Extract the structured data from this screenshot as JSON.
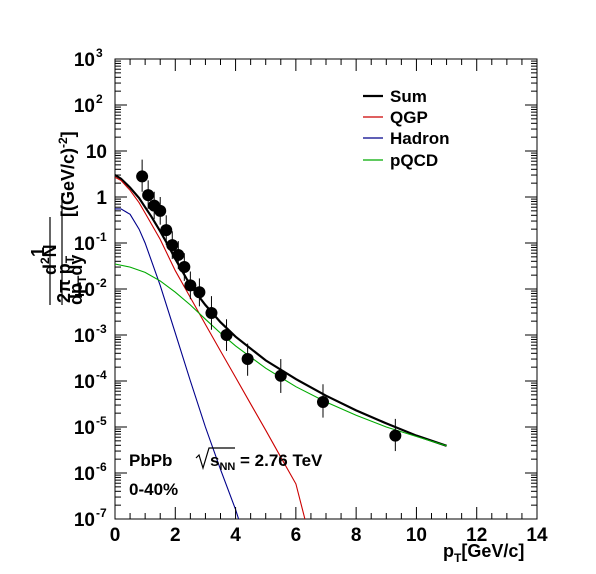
{
  "chart_data": {
    "type": "line",
    "x_axis": {
      "label_main": "p",
      "label_sub": "T",
      "label_unit": "[GeV/c]",
      "range": [
        0,
        14
      ],
      "ticks": [
        "0",
        "2",
        "4",
        "6",
        "8",
        "10",
        "12",
        "14"
      ]
    },
    "y_axis": {
      "scale": "log",
      "range": [
        1e-07,
        1000
      ],
      "ticks": [
        {
          "base": "10",
          "exp": "-7"
        },
        {
          "base": "10",
          "exp": "-6"
        },
        {
          "base": "10",
          "exp": "-5"
        },
        {
          "base": "10",
          "exp": "-4"
        },
        {
          "base": "10",
          "exp": "-3"
        },
        {
          "base": "10",
          "exp": "-2"
        },
        {
          "base": "10",
          "exp": "-1"
        },
        {
          "base": "1",
          "exp": ""
        },
        {
          "base": "10",
          "exp": ""
        },
        {
          "base": "10",
          "exp": "2"
        },
        {
          "base": "10",
          "exp": "3"
        }
      ],
      "title": {
        "numerator_one": "1",
        "denominator_prefix": "2π p",
        "denominator_sub_t": "T",
        "frac_num_d": "d",
        "frac_num_exp": "2",
        "frac_num_n": "N",
        "frac_den_dp": "dp",
        "frac_den_sub_t": "T",
        "frac_den_dy": "dy",
        "unit_main": "[(GeV/c)",
        "unit_exp": "-2",
        "unit_close": "]"
      }
    },
    "series": [
      {
        "name": "Sum",
        "color": "#000000",
        "x": [
          0,
          0.2,
          0.5,
          0.8,
          1.0,
          1.2,
          1.5,
          1.8,
          2.0,
          2.5,
          3.0,
          3.5,
          4.0,
          5.0,
          6.0,
          7.0,
          8.0,
          9.0,
          10.0,
          11.0
        ],
        "y": [
          3.0,
          2.5,
          1.6,
          0.95,
          0.6,
          0.38,
          0.18,
          0.08,
          0.045,
          0.012,
          0.0045,
          0.0019,
          0.00092,
          0.00028,
          0.00011,
          4.8e-05,
          2.3e-05,
          1.2e-05,
          6.5e-06,
          3.9e-06
        ]
      },
      {
        "name": "QGP",
        "color": "#cc0000",
        "x": [
          0,
          0.2,
          0.5,
          0.8,
          1.0,
          1.5,
          2.0,
          2.5,
          3.0,
          3.5,
          4.0,
          4.5,
          5.0,
          5.5,
          6.0,
          6.3
        ],
        "y": [
          2.7,
          2.3,
          1.4,
          0.75,
          0.45,
          0.12,
          0.025,
          0.0065,
          0.0017,
          0.00045,
          0.00012,
          3.2e-05,
          8.5e-06,
          2.2e-06,
          5.8e-07,
          1e-07
        ]
      },
      {
        "name": "Hadron",
        "color": "#00008b",
        "x": [
          0,
          0.2,
          0.5,
          0.8,
          1.0,
          1.5,
          2.0,
          2.5,
          3.0,
          3.5,
          4.0,
          4.1
        ],
        "y": [
          0.55,
          0.55,
          0.42,
          0.2,
          0.1,
          0.012,
          0.0011,
          0.0001,
          1e-05,
          1.2e-06,
          1.6e-07,
          1e-07
        ]
      },
      {
        "name": "pQCD",
        "color": "#00aa00",
        "x": [
          0,
          0.5,
          1.0,
          1.5,
          2.0,
          2.5,
          3.0,
          3.5,
          4.0,
          5.0,
          6.0,
          7.0,
          8.0,
          9.0,
          10.0,
          11.0
        ],
        "y": [
          0.035,
          0.03,
          0.023,
          0.015,
          0.0085,
          0.0045,
          0.0022,
          0.0011,
          0.00058,
          0.00019,
          7.5e-05,
          3.5e-05,
          1.8e-05,
          1e-05,
          6.2e-06,
          3.9e-06
        ]
      }
    ],
    "points": [
      {
        "x": 0.9,
        "y": 2.8,
        "ylo": 1.3,
        "yhi": 6.5
      },
      {
        "x": 1.1,
        "y": 1.1,
        "ylo": 0.55,
        "yhi": 2.3
      },
      {
        "x": 1.3,
        "y": 0.65,
        "ylo": 0.33,
        "yhi": 1.3
      },
      {
        "x": 1.5,
        "y": 0.5,
        "ylo": 0.25,
        "yhi": 1.0
      },
      {
        "x": 1.7,
        "y": 0.19,
        "ylo": 0.09,
        "yhi": 0.4
      },
      {
        "x": 1.9,
        "y": 0.09,
        "ylo": 0.045,
        "yhi": 0.18
      },
      {
        "x": 2.1,
        "y": 0.055,
        "ylo": 0.027,
        "yhi": 0.11
      },
      {
        "x": 2.3,
        "y": 0.03,
        "ylo": 0.015,
        "yhi": 0.06
      },
      {
        "x": 2.5,
        "y": 0.012,
        "ylo": 0.006,
        "yhi": 0.024
      },
      {
        "x": 2.8,
        "y": 0.0085,
        "ylo": 0.0042,
        "yhi": 0.017
      },
      {
        "x": 3.2,
        "y": 0.003,
        "ylo": 0.0013,
        "yhi": 0.007
      },
      {
        "x": 3.7,
        "y": 0.001,
        "ylo": 0.00045,
        "yhi": 0.0022
      },
      {
        "x": 4.4,
        "y": 0.0003,
        "ylo": 0.00013,
        "yhi": 0.00065
      },
      {
        "x": 5.5,
        "y": 0.00013,
        "ylo": 5.5e-05,
        "yhi": 0.0003
      },
      {
        "x": 6.9,
        "y": 3.5e-05,
        "ylo": 1.6e-05,
        "yhi": 8.5e-05
      },
      {
        "x": 9.3,
        "y": 6.5e-06,
        "ylo": 3e-06,
        "yhi": 1.5e-05
      }
    ],
    "legend": [
      "Sum",
      "QGP",
      "Hadron",
      "pQCD"
    ],
    "legend_placement": "top-right",
    "annotation": {
      "system": "PbPb",
      "sqrt_s": "s",
      "sqrt_sub": "NN",
      "energy": "= 2.76 TeV",
      "centrality": "0-40%"
    },
    "grid": false
  }
}
